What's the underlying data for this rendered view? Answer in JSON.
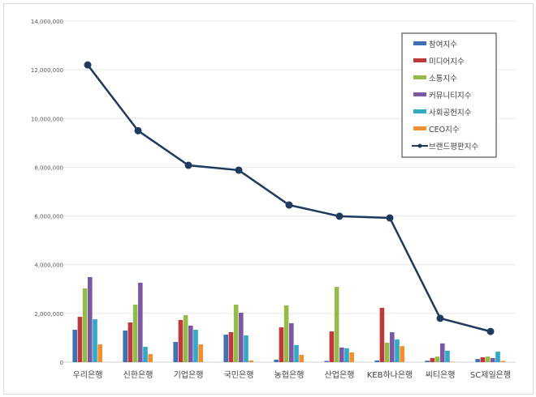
{
  "chart_data": {
    "type": "bar",
    "title": "",
    "xlabel": "",
    "ylabel": "",
    "ylim": [
      0,
      14000000
    ],
    "yticks": [
      "0",
      "2,000,000",
      "4,000,000",
      "6,000,000",
      "8,000,000",
      "10,000,000",
      "12,000,000",
      "14,000,000"
    ],
    "grid": true,
    "legend_position": "top-right",
    "categories": [
      "우리은행",
      "신한은행",
      "기업은행",
      "국민은행",
      "농협은행",
      "산업은행",
      "KEB하나은행",
      "씨티은행",
      "SC제일은행"
    ],
    "series": [
      {
        "name": "참여지수",
        "kind": "bar",
        "color": "#3f6fb5",
        "values": [
          1330000,
          1300000,
          830000,
          1130000,
          100000,
          50000,
          70000,
          60000,
          130000
        ]
      },
      {
        "name": "미디어지수",
        "kind": "bar",
        "color": "#c0393a",
        "values": [
          1860000,
          1630000,
          1730000,
          1230000,
          1430000,
          1260000,
          2230000,
          170000,
          200000
        ]
      },
      {
        "name": "소통지수",
        "kind": "bar",
        "color": "#94bb4a",
        "values": [
          3030000,
          2360000,
          1930000,
          2360000,
          2330000,
          3090000,
          800000,
          230000,
          230000
        ]
      },
      {
        "name": "커뮤니티지수",
        "kind": "bar",
        "color": "#7a58a4",
        "values": [
          3490000,
          3260000,
          1500000,
          2030000,
          1600000,
          600000,
          1230000,
          770000,
          170000
        ]
      },
      {
        "name": "사회공헌지수",
        "kind": "bar",
        "color": "#33a9c6",
        "values": [
          1760000,
          630000,
          1330000,
          1100000,
          700000,
          570000,
          930000,
          470000,
          430000
        ]
      },
      {
        "name": "CEO지수",
        "kind": "bar",
        "color": "#f28f2e",
        "values": [
          730000,
          330000,
          730000,
          70000,
          300000,
          400000,
          660000,
          20000,
          50000
        ]
      },
      {
        "name": "브랜드평판지수",
        "kind": "line",
        "color": "#1f3a5f",
        "values": [
          12200000,
          9500000,
          8080000,
          7880000,
          6450000,
          5990000,
          5920000,
          1800000,
          1260000
        ]
      }
    ]
  }
}
